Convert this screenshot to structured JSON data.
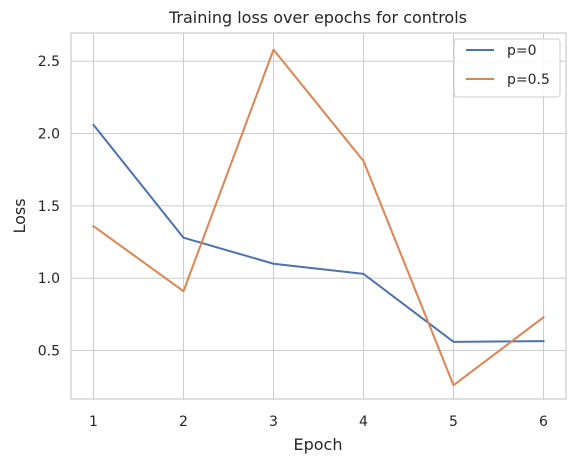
{
  "chart_data": {
    "type": "line",
    "title": "Training loss over epochs for controls",
    "xlabel": "Epoch",
    "ylabel": "Loss",
    "x": [
      1,
      2,
      3,
      4,
      5,
      6
    ],
    "xticks": [
      "1",
      "2",
      "3",
      "4",
      "5",
      "6"
    ],
    "xlim": [
      0.75,
      6.25
    ],
    "yticks": [
      "0.5",
      "1.0",
      "1.5",
      "2.0",
      "2.5"
    ],
    "ytick_values": [
      0.5,
      1.0,
      1.5,
      2.0,
      2.5
    ],
    "ylim": [
      0.165,
      2.695
    ],
    "grid": true,
    "legend_position": "top-right",
    "series": [
      {
        "name": "p=0",
        "color": "#4c72b0",
        "values": [
          2.06,
          1.28,
          1.1,
          1.03,
          0.56,
          0.565
        ]
      },
      {
        "name": "p=0.5",
        "color": "#dd8452",
        "values": [
          1.36,
          0.91,
          2.58,
          1.81,
          0.26,
          0.73
        ]
      }
    ]
  }
}
